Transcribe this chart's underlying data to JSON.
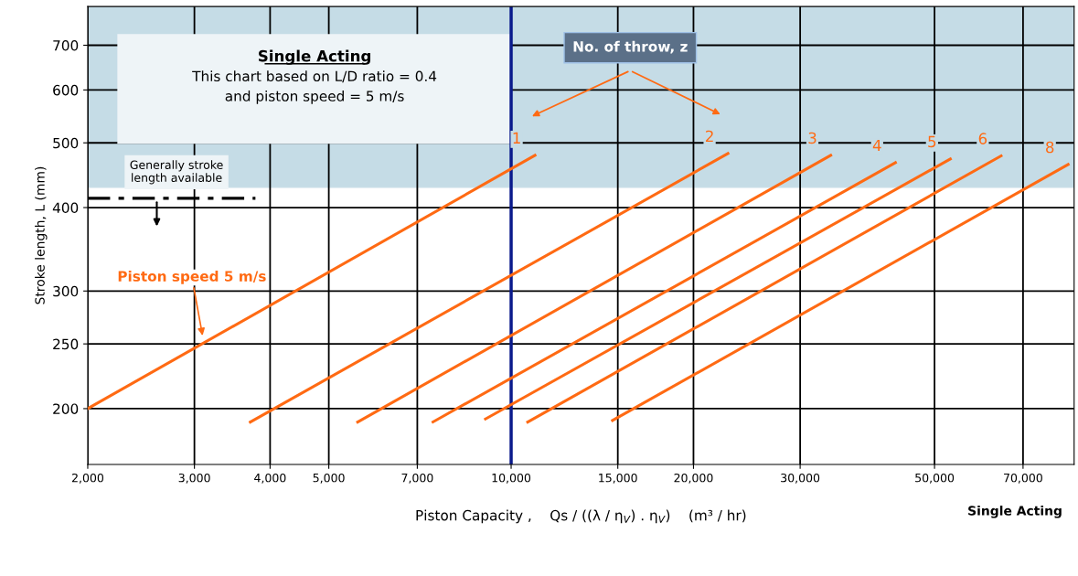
{
  "chart_data": {
    "type": "line",
    "xlabel": "Piston Capacity ,    Qs / ((λ / η$_{V}$) . η$_{V}$)    (m³ / hr)",
    "ylabel": "Stroke length, L (mm)",
    "log": "xy",
    "grid": true,
    "line_style": "solid",
    "marker": "none",
    "xlim": [
      2000,
      85000
    ],
    "ylim": [
      165,
      800
    ],
    "xticks": [
      {
        "value": 2000,
        "label": "2,000"
      },
      {
        "value": 3000,
        "label": "3,000"
      },
      {
        "value": 4000,
        "label": "4,000"
      },
      {
        "value": 5000,
        "label": "5,000"
      },
      {
        "value": 7000,
        "label": "7,000"
      },
      {
        "value": 10000,
        "label": "10,000"
      },
      {
        "value": 15000,
        "label": "15,000"
      },
      {
        "value": 20000,
        "label": "20,000"
      },
      {
        "value": 30000,
        "label": "30,000"
      },
      {
        "value": 50000,
        "label": "50,000"
      },
      {
        "value": 70000,
        "label": "70,000"
      }
    ],
    "yticks": [
      200,
      250,
      300,
      400,
      500,
      600,
      700
    ],
    "series": [
      {
        "name": "1",
        "color": "#ff6a13",
        "x": [
          2000,
          10950
        ],
        "values": [
          200,
          479
        ]
      },
      {
        "name": "2",
        "color": "#ff6a13",
        "x": [
          3710,
          22800
        ],
        "values": [
          191,
          482
        ]
      },
      {
        "name": "3",
        "color": "#ff6a13",
        "x": [
          5580,
          33700
        ],
        "values": [
          191,
          479
        ]
      },
      {
        "name": "4",
        "color": "#ff6a13",
        "x": [
          7430,
          43100
        ],
        "values": [
          191,
          467
        ]
      },
      {
        "name": "5",
        "color": "#ff6a13",
        "x": [
          9070,
          53100
        ],
        "values": [
          193,
          473
        ]
      },
      {
        "name": "6",
        "color": "#ff6a13",
        "x": [
          10650,
          64400
        ],
        "values": [
          191,
          478
        ]
      },
      {
        "name": "8",
        "color": "#ff6a13",
        "x": [
          14700,
          83100
        ],
        "values": [
          192,
          464
        ]
      }
    ],
    "ref_lines": [
      {
        "axis": "x",
        "value": 10000,
        "color": "#0a1a8c",
        "line_style": "solid"
      },
      {
        "axis": "y",
        "value": 413,
        "label": "Generally stroke\nlength available",
        "color": "#000000",
        "line_style": "dashed"
      }
    ],
    "bands": [
      {
        "axis": "y",
        "from": 429,
        "to": 800,
        "color": "#c5dce6"
      }
    ],
    "annotations": [
      "Single Acting",
      "This chart based on L/D ratio = 0.4\nand piston speed = 5 m/s",
      "No. of throw, z",
      {
        "text": "Piston speed 5 m/s",
        "x": 3100,
        "y": 255
      },
      "Single Acting"
    ]
  }
}
